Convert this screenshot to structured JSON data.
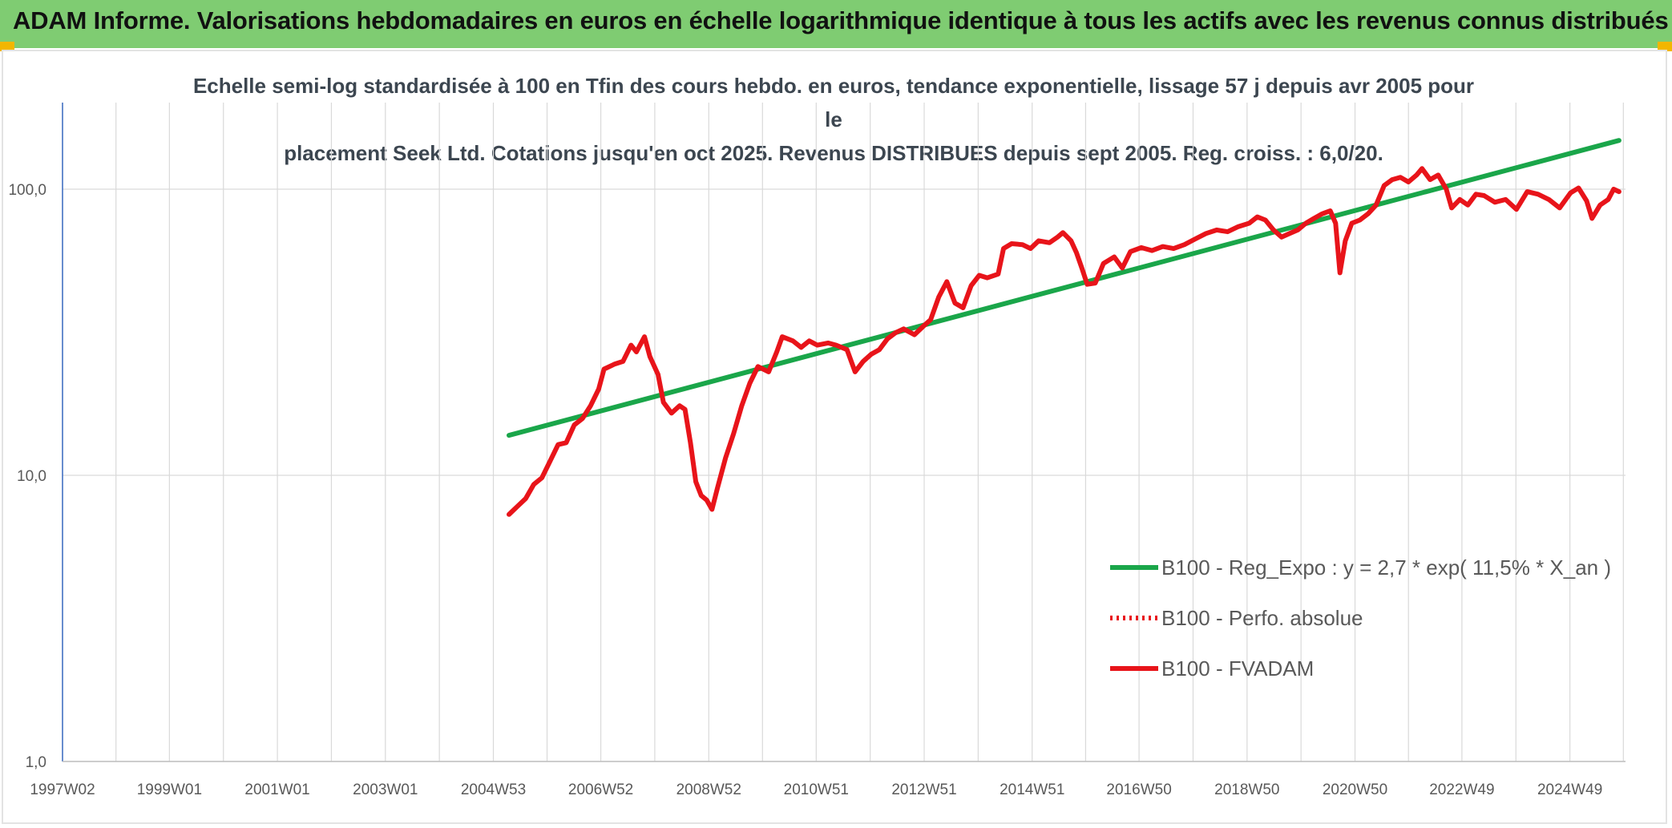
{
  "header": {
    "title": "ADAM Informe. Valorisations hebdomadaires en euros en échelle logarithmique identique à tous les actifs avec les revenus connus distribués"
  },
  "colors": {
    "banner": "#7fcc72",
    "regression": "#1aa64a",
    "price": "#e8141a",
    "axis": "#4472c4",
    "grid": "#d9d9d9",
    "corner": "#f2b600"
  },
  "chart_data": {
    "type": "line",
    "title_line1": "Echelle semi-log standardisée à 100 en Tfin des cours hebdo. en euros, tendance exponentielle, lissage 57 j depuis avr 2005 pour le",
    "title_line2": "placement Seek Ltd. Cotations jusqu'en oct 2025. Revenus DISTRIBUES depuis sept 2005. Reg. croiss. : 6,0/20.",
    "y_scale": "log",
    "ylim": [
      1,
      200
    ],
    "y_ticks": [
      {
        "value": 1,
        "label": "1,0"
      },
      {
        "value": 10,
        "label": "10,0"
      },
      {
        "value": 100,
        "label": "100,0"
      }
    ],
    "xlim": [
      1997.02,
      2025.97
    ],
    "x_ticks": [
      {
        "value": 1997.02,
        "label": "1997W02"
      },
      {
        "value": 1999.0,
        "label": "1999W01"
      },
      {
        "value": 2001.0,
        "label": "2001W01"
      },
      {
        "value": 2003.0,
        "label": "2003W01"
      },
      {
        "value": 2005.0,
        "label": "2004W53"
      },
      {
        "value": 2006.99,
        "label": "2006W52"
      },
      {
        "value": 2008.99,
        "label": "2008W52"
      },
      {
        "value": 2010.98,
        "label": "2010W51"
      },
      {
        "value": 2012.98,
        "label": "2012W51"
      },
      {
        "value": 2014.98,
        "label": "2014W51"
      },
      {
        "value": 2016.96,
        "label": "2016W50"
      },
      {
        "value": 2018.96,
        "label": "2018W50"
      },
      {
        "value": 2020.96,
        "label": "2020W50"
      },
      {
        "value": 2022.94,
        "label": "2022W49"
      },
      {
        "value": 2024.94,
        "label": "2024W49"
      }
    ],
    "grid": true,
    "legend_position": "lower-right",
    "series": [
      {
        "name": "B100 - Reg_Expo : y = 2,7 * exp( 11,5% *  X_an )",
        "color": "#1aa64a",
        "style": "solid",
        "points": [
          [
            2005.29,
            13.8
          ],
          [
            2025.85,
            148
          ]
        ]
      },
      {
        "name": "B100 - Perfo. absolue",
        "color": "#e8141a",
        "style": "dotted",
        "points": []
      },
      {
        "name": "B100 - FVADAM",
        "color": "#e8141a",
        "style": "solid",
        "points": [
          [
            2005.29,
            7.3
          ],
          [
            2005.45,
            7.8
          ],
          [
            2005.6,
            8.3
          ],
          [
            2005.75,
            9.3
          ],
          [
            2005.9,
            9.8
          ],
          [
            2006.05,
            11.2
          ],
          [
            2006.2,
            12.8
          ],
          [
            2006.35,
            13.0
          ],
          [
            2006.5,
            15.0
          ],
          [
            2006.65,
            15.8
          ],
          [
            2006.8,
            17.5
          ],
          [
            2006.95,
            20.0
          ],
          [
            2007.05,
            23.5
          ],
          [
            2007.25,
            24.5
          ],
          [
            2007.4,
            25.0
          ],
          [
            2007.55,
            28.5
          ],
          [
            2007.65,
            27.0
          ],
          [
            2007.8,
            30.5
          ],
          [
            2007.9,
            26.0
          ],
          [
            2008.05,
            22.5
          ],
          [
            2008.15,
            18.0
          ],
          [
            2008.3,
            16.5
          ],
          [
            2008.45,
            17.5
          ],
          [
            2008.55,
            17.0
          ],
          [
            2008.65,
            13.0
          ],
          [
            2008.75,
            9.5
          ],
          [
            2008.85,
            8.5
          ],
          [
            2008.95,
            8.2
          ],
          [
            2009.05,
            7.6
          ],
          [
            2009.15,
            9.0
          ],
          [
            2009.3,
            11.5
          ],
          [
            2009.45,
            14.0
          ],
          [
            2009.6,
            17.5
          ],
          [
            2009.75,
            21.0
          ],
          [
            2009.9,
            24.0
          ],
          [
            2010.1,
            23.0
          ],
          [
            2010.25,
            27.0
          ],
          [
            2010.35,
            30.5
          ],
          [
            2010.55,
            29.5
          ],
          [
            2010.7,
            28.0
          ],
          [
            2010.85,
            29.5
          ],
          [
            2011.0,
            28.5
          ],
          [
            2011.2,
            29.0
          ],
          [
            2011.35,
            28.5
          ],
          [
            2011.55,
            27.5
          ],
          [
            2011.7,
            23.0
          ],
          [
            2011.85,
            25.0
          ],
          [
            2012.0,
            26.5
          ],
          [
            2012.15,
            27.5
          ],
          [
            2012.3,
            30.0
          ],
          [
            2012.45,
            31.5
          ],
          [
            2012.6,
            32.5
          ],
          [
            2012.8,
            31.0
          ],
          [
            2012.95,
            33.0
          ],
          [
            2013.1,
            35.0
          ],
          [
            2013.25,
            42.0
          ],
          [
            2013.4,
            47.5
          ],
          [
            2013.55,
            40.0
          ],
          [
            2013.7,
            38.5
          ],
          [
            2013.85,
            46.0
          ],
          [
            2014.0,
            50.0
          ],
          [
            2014.15,
            49.0
          ],
          [
            2014.35,
            50.5
          ],
          [
            2014.45,
            62.0
          ],
          [
            2014.6,
            64.5
          ],
          [
            2014.8,
            64.0
          ],
          [
            2014.95,
            62.0
          ],
          [
            2015.1,
            66.0
          ],
          [
            2015.3,
            65.0
          ],
          [
            2015.45,
            68.0
          ],
          [
            2015.55,
            70.5
          ],
          [
            2015.7,
            66.0
          ],
          [
            2015.8,
            60.0
          ],
          [
            2015.9,
            53.0
          ],
          [
            2016.0,
            46.5
          ],
          [
            2016.15,
            47.0
          ],
          [
            2016.3,
            55.0
          ],
          [
            2016.5,
            58.0
          ],
          [
            2016.65,
            53.0
          ],
          [
            2016.8,
            60.5
          ],
          [
            2017.0,
            62.5
          ],
          [
            2017.2,
            61.0
          ],
          [
            2017.4,
            63.0
          ],
          [
            2017.6,
            62.0
          ],
          [
            2017.8,
            64.0
          ],
          [
            2018.0,
            67.0
          ],
          [
            2018.2,
            70.0
          ],
          [
            2018.4,
            72.0
          ],
          [
            2018.6,
            71.0
          ],
          [
            2018.8,
            74.0
          ],
          [
            2019.0,
            76.0
          ],
          [
            2019.15,
            80.0
          ],
          [
            2019.3,
            78.0
          ],
          [
            2019.45,
            72.0
          ],
          [
            2019.6,
            68.0
          ],
          [
            2019.75,
            70.0
          ],
          [
            2019.9,
            72.0
          ],
          [
            2020.05,
            76.0
          ],
          [
            2020.2,
            79.0
          ],
          [
            2020.35,
            82.0
          ],
          [
            2020.5,
            84.0
          ],
          [
            2020.6,
            76.0
          ],
          [
            2020.68,
            51.0
          ],
          [
            2020.78,
            66.0
          ],
          [
            2020.9,
            76.0
          ],
          [
            2021.05,
            78.0
          ],
          [
            2021.2,
            82.0
          ],
          [
            2021.35,
            88.0
          ],
          [
            2021.5,
            103.0
          ],
          [
            2021.65,
            108.0
          ],
          [
            2021.8,
            110.0
          ],
          [
            2021.95,
            106.0
          ],
          [
            2022.1,
            112.0
          ],
          [
            2022.2,
            118.0
          ],
          [
            2022.35,
            108.0
          ],
          [
            2022.5,
            112.0
          ],
          [
            2022.65,
            100.0
          ],
          [
            2022.75,
            86.0
          ],
          [
            2022.9,
            92.0
          ],
          [
            2023.05,
            88.0
          ],
          [
            2023.2,
            96.0
          ],
          [
            2023.35,
            95.0
          ],
          [
            2023.55,
            90.0
          ],
          [
            2023.75,
            92.0
          ],
          [
            2023.95,
            85.0
          ],
          [
            2024.15,
            98.0
          ],
          [
            2024.35,
            96.0
          ],
          [
            2024.55,
            92.0
          ],
          [
            2024.75,
            86.0
          ],
          [
            2024.95,
            97.0
          ],
          [
            2025.1,
            101.0
          ],
          [
            2025.25,
            91.0
          ],
          [
            2025.35,
            79.0
          ],
          [
            2025.5,
            88.0
          ],
          [
            2025.65,
            92.0
          ],
          [
            2025.75,
            100.0
          ],
          [
            2025.85,
            98.0
          ]
        ]
      }
    ]
  }
}
